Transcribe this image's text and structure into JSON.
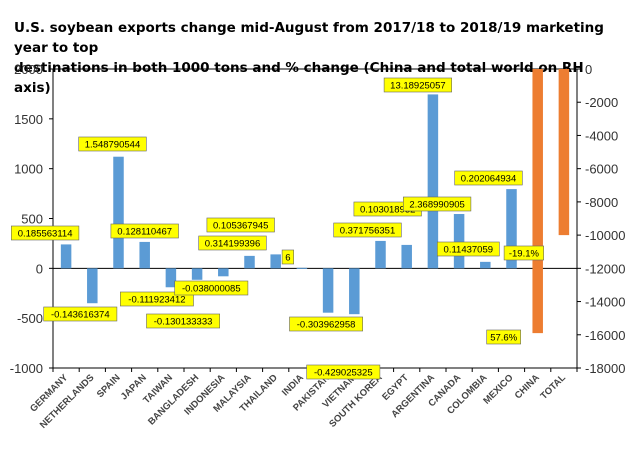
{
  "chart_data": {
    "type": "bar",
    "title": [
      "U.S. soybean exports change mid-August from 2017/18 to 2018/19 marketing year to top",
      "destinations in both 1000 tons and % change (China and total world on RH axis)"
    ],
    "categories": [
      "GERMANY",
      "NETHERLANDS",
      "SPAIN",
      "JAPAN",
      "TAIWAN",
      "BANGLADESH",
      "INDONESIA",
      "MALAYSIA",
      "THAILAND",
      "INDIA",
      "PAKISTAN",
      "VIETNAM",
      "SOUTH KOREA",
      "EGYPT",
      "ARGENTINA",
      "CANADA",
      "COLOMBIA",
      "MEXICO",
      "CHINA",
      "TOTAL"
    ],
    "left_axis": {
      "ylim": [
        -1000,
        2000
      ],
      "ticks": [
        "2000",
        "1500",
        "1000",
        "500",
        "0",
        "-500",
        "-1000"
      ]
    },
    "right_axis": {
      "ylim": [
        -18000,
        0
      ],
      "ticks": [
        "0",
        "-2000",
        "-4000",
        "-6000",
        "-8000",
        "-10000",
        "-12000",
        "-14000",
        "-16000",
        "-18000"
      ]
    },
    "series": [
      {
        "axis": "left",
        "color": "#5b9bd5",
        "values": [
          240,
          -350,
          1120,
          265,
          -190,
          -115,
          -80,
          125,
          140,
          5,
          -445,
          -460,
          275,
          235,
          1745,
          545,
          65,
          795,
          null,
          null
        ],
        "labels": [
          "0.185563114",
          "-0.143616374",
          "1.548790544",
          "0.128110467",
          "-0.111923412",
          "-0.130133333",
          "-0.038000085",
          "0.314199396",
          "0.105367945",
          "6",
          "-0.303962958",
          "-0.429025325",
          "0.371756351",
          "0.103018932",
          "13.18925057",
          "2.368990905",
          "0.11437059",
          "0.202064934",
          "",
          ""
        ]
      },
      {
        "axis": "right",
        "color": "#ed7d31",
        "values": [
          null,
          null,
          null,
          null,
          null,
          null,
          null,
          null,
          null,
          null,
          null,
          null,
          null,
          null,
          null,
          null,
          null,
          null,
          -15900,
          -10000
        ],
        "labels": [
          "",
          "",
          "",
          "",
          "",
          "",
          "",
          "",
          "",
          "",
          "",
          "",
          "",
          "",
          "",
          "",
          "",
          "",
          "57.6%",
          "-19.1%"
        ]
      }
    ],
    "label_style": {
      "fill": "#ffff00"
    },
    "grid": false,
    "legend": "none"
  }
}
